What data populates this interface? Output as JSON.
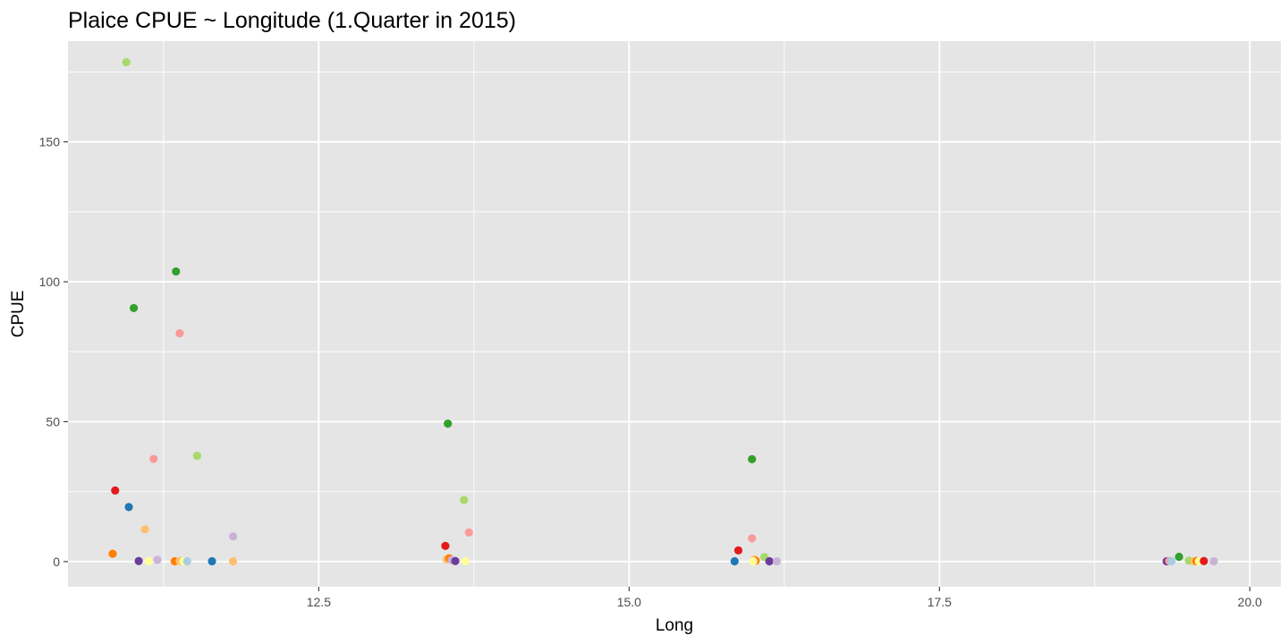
{
  "chart_data": {
    "type": "scatter",
    "title": "Plaice CPUE ~ Longitude (1.Quarter in 2015)",
    "xlabel": "Long",
    "ylabel": "CPUE",
    "xlim": [
      10.48,
      20.25
    ],
    "ylim": [
      -9,
      186
    ],
    "x_ticks": [
      12.5,
      15.0,
      17.5,
      20.0
    ],
    "x_tick_labels": [
      "12.5",
      "15.0",
      "17.5",
      "20.0"
    ],
    "y_ticks": [
      0,
      50,
      100,
      150
    ],
    "y_tick_labels": [
      "0",
      "50",
      "100",
      "150"
    ],
    "grid": true,
    "legend": "none",
    "background": "#e5e5e5",
    "grid_color": "#ffffff",
    "points": [
      {
        "x": 10.95,
        "y": 178.5,
        "color": "#a6d96a"
      },
      {
        "x": 11.35,
        "y": 103.7,
        "color": "#33a02c"
      },
      {
        "x": 11.01,
        "y": 90.6,
        "color": "#33a02c"
      },
      {
        "x": 11.38,
        "y": 81.6,
        "color": "#fb9a99"
      },
      {
        "x": 11.52,
        "y": 37.8,
        "color": "#a6d96a"
      },
      {
        "x": 11.17,
        "y": 36.7,
        "color": "#fb9a99"
      },
      {
        "x": 10.86,
        "y": 25.4,
        "color": "#e31a1c"
      },
      {
        "x": 10.97,
        "y": 19.5,
        "color": "#1f78b4"
      },
      {
        "x": 11.1,
        "y": 11.5,
        "color": "#fdbf6f"
      },
      {
        "x": 11.81,
        "y": 9.0,
        "color": "#cab2d6"
      },
      {
        "x": 10.84,
        "y": 2.8,
        "color": "#ff7f00"
      },
      {
        "x": 11.05,
        "y": 0.2,
        "color": "#6a3d9a"
      },
      {
        "x": 11.13,
        "y": 0.1,
        "color": "#ffff99"
      },
      {
        "x": 11.2,
        "y": 0.6,
        "color": "#cab2d6"
      },
      {
        "x": 11.34,
        "y": 0.1,
        "color": "#ff7f00"
      },
      {
        "x": 11.38,
        "y": 0.2,
        "color": "#fdbf6f"
      },
      {
        "x": 11.41,
        "y": 0.1,
        "color": "#ffff99"
      },
      {
        "x": 11.44,
        "y": 0.1,
        "color": "#a6cee3"
      },
      {
        "x": 11.64,
        "y": 0.1,
        "color": "#1f78b4"
      },
      {
        "x": 11.81,
        "y": 0.1,
        "color": "#fdbf6f"
      },
      {
        "x": 13.54,
        "y": 49.3,
        "color": "#33a02c"
      },
      {
        "x": 13.67,
        "y": 22.0,
        "color": "#a6d96a"
      },
      {
        "x": 13.71,
        "y": 10.4,
        "color": "#fb9a99"
      },
      {
        "x": 13.52,
        "y": 5.6,
        "color": "#e31a1c"
      },
      {
        "x": 13.53,
        "y": 0.8,
        "color": "#fdbf6f"
      },
      {
        "x": 13.55,
        "y": 1.2,
        "color": "#ff7f00"
      },
      {
        "x": 13.57,
        "y": 0.5,
        "color": "#cab2d6"
      },
      {
        "x": 13.6,
        "y": 0.2,
        "color": "#6a3d9a"
      },
      {
        "x": 13.68,
        "y": 0.1,
        "color": "#ffff99"
      },
      {
        "x": 15.99,
        "y": 36.6,
        "color": "#33a02c"
      },
      {
        "x": 15.99,
        "y": 8.3,
        "color": "#fb9a99"
      },
      {
        "x": 15.88,
        "y": 4.0,
        "color": "#e31a1c"
      },
      {
        "x": 16.09,
        "y": 1.6,
        "color": "#a6d96a"
      },
      {
        "x": 15.85,
        "y": 0.1,
        "color": "#1f78b4"
      },
      {
        "x": 16.01,
        "y": 0.8,
        "color": "#fdbf6f"
      },
      {
        "x": 16.02,
        "y": 0.3,
        "color": "#ff7f00"
      },
      {
        "x": 16.0,
        "y": 0.1,
        "color": "#ffff99"
      },
      {
        "x": 16.13,
        "y": 0.1,
        "color": "#6a3d9a"
      },
      {
        "x": 16.19,
        "y": 0.1,
        "color": "#cab2d6"
      },
      {
        "x": 19.43,
        "y": 1.7,
        "color": "#33a02c"
      },
      {
        "x": 19.33,
        "y": 0.1,
        "color": "#6a3d9a"
      },
      {
        "x": 19.35,
        "y": 0.2,
        "color": "#fb9a99"
      },
      {
        "x": 19.37,
        "y": 0.1,
        "color": "#a6cee3"
      },
      {
        "x": 19.51,
        "y": 0.3,
        "color": "#a6d96a"
      },
      {
        "x": 19.55,
        "y": 0.1,
        "color": "#fdbf6f"
      },
      {
        "x": 19.57,
        "y": 0.2,
        "color": "#ff7f00"
      },
      {
        "x": 19.59,
        "y": 0.1,
        "color": "#ffff99"
      },
      {
        "x": 19.63,
        "y": 0.2,
        "color": "#e31a1c"
      },
      {
        "x": 19.71,
        "y": 0.1,
        "color": "#cab2d6"
      }
    ]
  }
}
